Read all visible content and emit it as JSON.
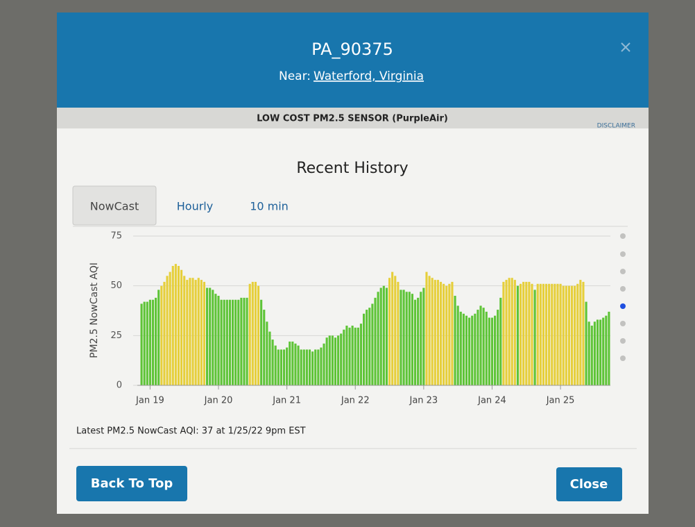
{
  "header": {
    "title": "PA_90375",
    "near_label": "Near:",
    "near_link": "Waterford, Virginia"
  },
  "sensor_bar": {
    "label": "LOW COST PM2.5 SENSOR (PurpleAir)",
    "disclaimer": "DISCLAIMER"
  },
  "section_title": "Recent History",
  "tabs": [
    "NowCast",
    "Hourly",
    "10 min"
  ],
  "chart_data": {
    "type": "bar",
    "ylabel": "PM2.5 NowCast AQI",
    "categories": [
      null,
      null,
      null,
      "Jan 19",
      null,
      null,
      null,
      null,
      null,
      null,
      null,
      null,
      null,
      null,
      null,
      null,
      null,
      null,
      null,
      null,
      null,
      null,
      null,
      null,
      null,
      null,
      null,
      "Jan 20",
      null,
      null,
      null,
      null,
      null,
      null,
      null,
      null,
      null,
      null,
      null,
      null,
      null,
      null,
      null,
      null,
      null,
      null,
      null,
      null,
      null,
      null,
      null,
      "Jan 21",
      null,
      null,
      null,
      null,
      null,
      null,
      null,
      null,
      null,
      null,
      null,
      null,
      null,
      null,
      null,
      null,
      null,
      null,
      null,
      null,
      null,
      null,
      null,
      "Jan 22",
      null,
      null,
      null,
      null,
      null,
      null,
      null,
      null,
      null,
      null,
      null,
      null,
      null,
      null,
      null,
      null,
      null,
      null,
      null,
      null,
      null,
      null,
      null,
      "Jan 23",
      null,
      null,
      null,
      null,
      null,
      null,
      null,
      null,
      null,
      null,
      null,
      null,
      null,
      null,
      null,
      null,
      null,
      null,
      null,
      null,
      null,
      null,
      null,
      "Jan 24",
      null,
      null,
      null,
      null,
      null,
      null,
      null,
      null,
      null,
      null,
      null,
      null,
      null,
      null,
      null,
      null,
      null,
      null,
      null,
      null,
      null,
      null,
      null,
      "Jan 25",
      null,
      null,
      null,
      null,
      null,
      null,
      null,
      null,
      null,
      null,
      null,
      null,
      null,
      null,
      null,
      null,
      null
    ],
    "values": [
      41,
      42,
      42,
      43,
      43,
      44,
      48,
      50,
      52,
      55,
      57,
      60,
      61,
      60,
      58,
      55,
      53,
      54,
      54,
      53,
      54,
      53,
      52,
      49,
      49,
      48,
      46,
      45,
      43,
      43,
      43,
      43,
      43,
      43,
      43,
      44,
      44,
      44,
      51,
      52,
      52,
      50,
      43,
      38,
      32,
      27,
      23,
      20,
      18,
      18,
      18,
      19,
      22,
      22,
      21,
      20,
      18,
      18,
      18,
      18,
      17,
      18,
      18,
      19,
      21,
      24,
      25,
      25,
      24,
      25,
      26,
      28,
      30,
      29,
      30,
      29,
      29,
      31,
      36,
      38,
      39,
      41,
      44,
      47,
      49,
      50,
      49,
      54,
      57,
      55,
      52,
      48,
      48,
      47,
      47,
      46,
      43,
      44,
      47,
      49,
      57,
      55,
      54,
      53,
      53,
      52,
      51,
      50,
      51,
      52,
      45,
      40,
      37,
      36,
      35,
      34,
      35,
      36,
      38,
      40,
      39,
      37,
      34,
      34,
      35,
      38,
      44,
      52,
      53,
      54,
      54,
      53,
      50,
      51,
      52,
      52,
      52,
      51,
      48,
      51,
      51,
      51,
      51,
      51,
      51,
      51,
      51,
      51,
      50,
      50,
      50,
      50,
      50,
      51,
      53,
      52,
      42,
      32,
      30,
      32,
      33,
      33,
      34,
      35,
      37
    ],
    "colors": [
      "#5ec437",
      "#5ec437",
      "#5ec437",
      "#5ec437",
      "#5ec437",
      "#5ec437",
      "#5ec437",
      "#e6cf3b",
      "#e6cf3b",
      "#e6cf3b",
      "#e6cf3b",
      "#e6cf3b",
      "#e6cf3b",
      "#e6cf3b",
      "#e6cf3b",
      "#e6cf3b",
      "#e6cf3b",
      "#e6cf3b",
      "#e6cf3b",
      "#e6cf3b",
      "#e6cf3b",
      "#e6cf3b",
      "#e6cf3b",
      "#5ec437",
      "#5ec437",
      "#5ec437",
      "#5ec437",
      "#5ec437",
      "#5ec437",
      "#5ec437",
      "#5ec437",
      "#5ec437",
      "#5ec437",
      "#5ec437",
      "#5ec437",
      "#5ec437",
      "#5ec437",
      "#5ec437",
      "#e6cf3b",
      "#e6cf3b",
      "#e6cf3b",
      "#e6cf3b",
      "#5ec437",
      "#5ec437",
      "#5ec437",
      "#5ec437",
      "#5ec437",
      "#5ec437",
      "#5ec437",
      "#5ec437",
      "#5ec437",
      "#5ec437",
      "#5ec437",
      "#5ec437",
      "#5ec437",
      "#5ec437",
      "#5ec437",
      "#5ec437",
      "#5ec437",
      "#5ec437",
      "#5ec437",
      "#5ec437",
      "#5ec437",
      "#5ec437",
      "#5ec437",
      "#5ec437",
      "#5ec437",
      "#5ec437",
      "#5ec437",
      "#5ec437",
      "#5ec437",
      "#5ec437",
      "#5ec437",
      "#5ec437",
      "#5ec437",
      "#5ec437",
      "#5ec437",
      "#5ec437",
      "#5ec437",
      "#5ec437",
      "#5ec437",
      "#5ec437",
      "#5ec437",
      "#5ec437",
      "#5ec437",
      "#5ec437",
      "#5ec437",
      "#e6cf3b",
      "#e6cf3b",
      "#e6cf3b",
      "#e6cf3b",
      "#5ec437",
      "#5ec437",
      "#5ec437",
      "#5ec437",
      "#5ec437",
      "#5ec437",
      "#5ec437",
      "#5ec437",
      "#5ec437",
      "#e6cf3b",
      "#e6cf3b",
      "#e6cf3b",
      "#e6cf3b",
      "#e6cf3b",
      "#e6cf3b",
      "#e6cf3b",
      "#e6cf3b",
      "#e6cf3b",
      "#e6cf3b",
      "#5ec437",
      "#5ec437",
      "#5ec437",
      "#5ec437",
      "#5ec437",
      "#5ec437",
      "#5ec437",
      "#5ec437",
      "#5ec437",
      "#5ec437",
      "#5ec437",
      "#5ec437",
      "#5ec437",
      "#5ec437",
      "#5ec437",
      "#5ec437",
      "#5ec437",
      "#e6cf3b",
      "#e6cf3b",
      "#e6cf3b",
      "#e6cf3b",
      "#e6cf3b",
      "#5ec437",
      "#e6cf3b",
      "#e6cf3b",
      "#e6cf3b",
      "#e6cf3b",
      "#e6cf3b",
      "#5ec437",
      "#e6cf3b",
      "#e6cf3b",
      "#e6cf3b",
      "#e6cf3b",
      "#e6cf3b",
      "#e6cf3b",
      "#e6cf3b",
      "#e6cf3b",
      "#e6cf3b",
      "#e6cf3b",
      "#e6cf3b",
      "#e6cf3b",
      "#e6cf3b",
      "#e6cf3b",
      "#e6cf3b",
      "#e6cf3b",
      "#e6cf3b",
      "#5ec437",
      "#5ec437",
      "#5ec437",
      "#5ec437",
      "#5ec437",
      "#5ec437",
      "#5ec437",
      "#5ec437",
      "#5ec437"
    ],
    "ylim": [
      0,
      75
    ],
    "yticks": [
      0,
      25,
      50,
      75
    ],
    "grid": true
  },
  "latest": "Latest PM2.5 NowCast AQI: 37 at 1/25/22 9pm EST",
  "buttons": {
    "back_to_top": "Back To Top",
    "close": "Close"
  }
}
